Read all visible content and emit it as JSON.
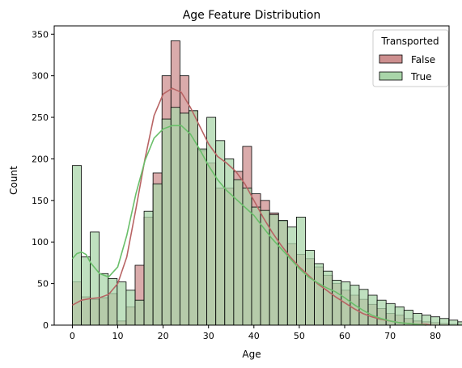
{
  "chart_data": {
    "type": "histogram",
    "title": "Age Feature Distribution",
    "xlabel": "Age",
    "ylabel": "Count",
    "xlim": [
      -4,
      83
    ],
    "ylim": [
      0,
      360
    ],
    "xticks": [
      0,
      10,
      20,
      30,
      40,
      50,
      60,
      70,
      80
    ],
    "yticks": [
      0,
      50,
      100,
      150,
      200,
      250,
      300,
      350
    ],
    "bin_width": 1.975,
    "bin_start": 0,
    "grid": false,
    "legend": {
      "title": "Transported",
      "placement": "upper-right"
    },
    "series": [
      {
        "name": "False",
        "color": "#cd8f8f",
        "line_color": "#b86464",
        "counts": [
          52,
          34,
          31,
          33,
          38,
          5,
          22,
          72,
          130,
          183,
          300,
          342,
          300,
          258,
          210,
          195,
          165,
          165,
          185,
          215,
          158,
          150,
          135,
          125,
          98,
          85,
          80,
          70,
          60,
          50,
          42,
          36,
          31,
          25,
          20,
          14,
          12,
          8,
          5,
          4,
          3,
          2,
          1,
          1,
          1,
          1,
          1,
          1,
          1
        ],
        "kde": [
          [
            0,
            24
          ],
          [
            2,
            30
          ],
          [
            4,
            32
          ],
          [
            6,
            33
          ],
          [
            8,
            37
          ],
          [
            10,
            50
          ],
          [
            12,
            82
          ],
          [
            14,
            140
          ],
          [
            16,
            200
          ],
          [
            18,
            252
          ],
          [
            20,
            278
          ],
          [
            22,
            285
          ],
          [
            24,
            280
          ],
          [
            26,
            262
          ],
          [
            28,
            240
          ],
          [
            30,
            218
          ],
          [
            32,
            203
          ],
          [
            34,
            195
          ],
          [
            36,
            185
          ],
          [
            38,
            170
          ],
          [
            40,
            150
          ],
          [
            42,
            130
          ],
          [
            44,
            112
          ],
          [
            46,
            96
          ],
          [
            48,
            82
          ],
          [
            50,
            70
          ],
          [
            52,
            60
          ],
          [
            54,
            50
          ],
          [
            56,
            42
          ],
          [
            58,
            34
          ],
          [
            60,
            27
          ],
          [
            62,
            20
          ],
          [
            64,
            14
          ],
          [
            66,
            10
          ],
          [
            68,
            7
          ],
          [
            70,
            5
          ],
          [
            72,
            3
          ],
          [
            74,
            2
          ],
          [
            76,
            1
          ],
          [
            78,
            1
          ],
          [
            79,
            0
          ]
        ]
      },
      {
        "name": "True",
        "color": "#a9d5a9",
        "line_color": "#6abf6a",
        "counts": [
          192,
          82,
          112,
          62,
          56,
          52,
          42,
          30,
          137,
          170,
          248,
          262,
          255,
          258,
          212,
          250,
          222,
          200,
          175,
          165,
          142,
          138,
          133,
          126,
          118,
          130,
          90,
          74,
          65,
          54,
          52,
          48,
          43,
          36,
          30,
          26,
          22,
          18,
          14,
          12,
          10,
          8,
          6,
          4,
          3,
          2,
          2,
          1,
          1
        ],
        "kde": [
          [
            0,
            80
          ],
          [
            1,
            86
          ],
          [
            2,
            88
          ],
          [
            3,
            85
          ],
          [
            4,
            75
          ],
          [
            6,
            62
          ],
          [
            8,
            58
          ],
          [
            10,
            70
          ],
          [
            12,
            108
          ],
          [
            14,
            158
          ],
          [
            16,
            198
          ],
          [
            18,
            225
          ],
          [
            20,
            236
          ],
          [
            22,
            240
          ],
          [
            24,
            240
          ],
          [
            26,
            230
          ],
          [
            28,
            212
          ],
          [
            30,
            192
          ],
          [
            32,
            175
          ],
          [
            34,
            162
          ],
          [
            36,
            152
          ],
          [
            38,
            142
          ],
          [
            40,
            132
          ],
          [
            42,
            118
          ],
          [
            44,
            104
          ],
          [
            46,
            92
          ],
          [
            48,
            80
          ],
          [
            50,
            68
          ],
          [
            52,
            58
          ],
          [
            54,
            51
          ],
          [
            56,
            45
          ],
          [
            58,
            40
          ],
          [
            60,
            33
          ],
          [
            62,
            25
          ],
          [
            64,
            18
          ],
          [
            66,
            12
          ],
          [
            68,
            8
          ],
          [
            70,
            5
          ],
          [
            72,
            3
          ],
          [
            74,
            2
          ],
          [
            76,
            1
          ],
          [
            78,
            0
          ]
        ]
      }
    ]
  }
}
